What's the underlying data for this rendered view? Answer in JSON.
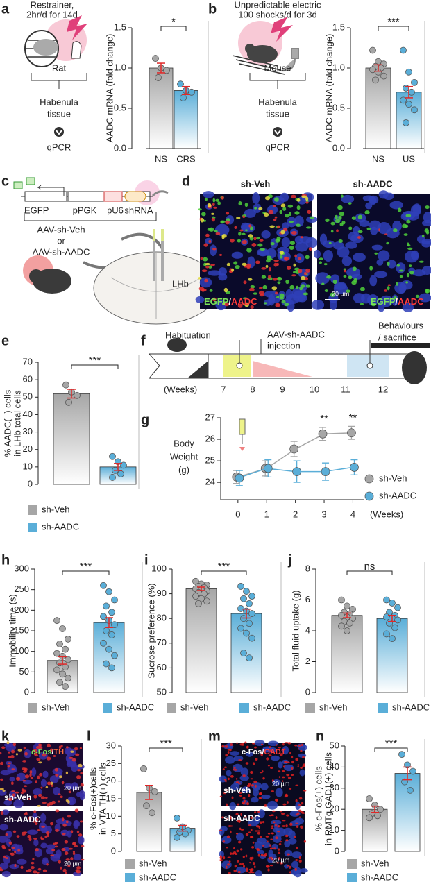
{
  "letters": [
    "a",
    "b",
    "c",
    "d",
    "e",
    "f",
    "g",
    "h",
    "i",
    "j",
    "k",
    "l",
    "m",
    "n"
  ],
  "diagram_a": {
    "lines": [
      "Restrainer,",
      "2hr/d for 14d"
    ],
    "animal": "Rat",
    "tissue": [
      "Habenula",
      "tissue"
    ],
    "assay": "qPCR"
  },
  "diagram_b": {
    "lines": [
      "Unpredictable electric",
      "100 shocks/d for 3d"
    ],
    "animal": "Mouse",
    "tissue": [
      "Habenula",
      "tissue"
    ],
    "assay": "qPCR"
  },
  "diagram_c": {
    "elements": [
      "EGFP",
      "pPGK",
      "pU6",
      "shRNA"
    ],
    "vectors": [
      "AAV-sh-Veh",
      "or",
      "AAV-sh-AADC"
    ],
    "region": "LHb"
  },
  "images_d": {
    "titles": [
      "sh-Veh",
      "sh-AADC"
    ],
    "stain": [
      "EGFP",
      "/",
      "AADC"
    ],
    "scale": "20 µm"
  },
  "timeline_f": {
    "events": [
      "Habituation",
      "AAV-sh-AADC",
      "injection",
      "Behaviours",
      "/ sacrifice"
    ],
    "unit": "(Weeks)",
    "weeks": [
      7,
      8,
      9,
      10,
      11,
      12
    ]
  },
  "images_k": {
    "stain": [
      "c-Fos",
      "/",
      "TH"
    ],
    "groups": [
      "sh-Veh",
      "sh-AADC"
    ],
    "scale": "20 µm"
  },
  "images_m": {
    "stain": [
      "c-Fos",
      "/",
      "GAD1"
    ],
    "groups": [
      "sh-Veh",
      "sh-AADC"
    ],
    "scale": "20 µm"
  },
  "chart_data": [
    {
      "type": "bar",
      "ylabel": [
        "AADC mRNA (fold change)"
      ],
      "categories": [
        "NS",
        "CRS"
      ],
      "values": [
        1.0,
        0.72
      ],
      "errors": [
        0.06,
        0.05
      ],
      "points": [
        [
          1.12,
          1.0,
          0.97,
          0.88
        ],
        [
          0.8,
          0.72,
          0.7,
          0.63
        ]
      ],
      "colors": [
        "#a6a6a6",
        "#5aaed8"
      ],
      "ylim": [
        0,
        1.5
      ],
      "yticks": [
        {
          "value": 0,
          "label": "0.0"
        },
        0.5,
        {
          "value": 1,
          "label": "1.0"
        },
        1.5
      ],
      "significance": "*"
    },
    {
      "type": "bar",
      "ylabel": [
        "AADC mRNA (fold change)"
      ],
      "categories": [
        "NS",
        "US"
      ],
      "values": [
        1.0,
        0.7
      ],
      "errors": [
        0.04,
        0.07
      ],
      "points": [
        [
          1.22,
          1.08,
          1.05,
          1.02,
          1.0,
          0.98,
          0.95,
          0.9,
          0.85
        ],
        [
          1.22,
          0.95,
          0.82,
          0.75,
          0.7,
          0.6,
          0.55,
          0.48,
          0.32
        ]
      ],
      "colors": [
        "#a6a6a6",
        "#5aaed8"
      ],
      "ylim": [
        0,
        1.5
      ],
      "yticks": [
        {
          "value": 0,
          "label": "0.0"
        },
        0.5,
        {
          "value": 1,
          "label": "1.0"
        },
        1.5
      ],
      "significance": "***"
    },
    {
      "type": "bar",
      "ylabel": [
        "% AADC(+) cells",
        "in LHb total cells"
      ],
      "categories": [
        "sh-Veh",
        "sh-AADC"
      ],
      "values": [
        52,
        10
      ],
      "errors": [
        2.5,
        2
      ],
      "points": [
        [
          57,
          53,
          51,
          47
        ],
        [
          16,
          13,
          11,
          8,
          6,
          4
        ]
      ],
      "colors": [
        "#a6a6a6",
        "#5aaed8"
      ],
      "ylim": [
        0,
        70
      ],
      "yticks": [
        0,
        10,
        20,
        30,
        40,
        50,
        60,
        70
      ],
      "significance": "***",
      "legend": "bottom"
    },
    {
      "type": "line",
      "ylabel": [
        "Body",
        "Weight",
        "(g)"
      ],
      "x": [
        0,
        1,
        2,
        3,
        4
      ],
      "xlabel": "(Weeks)",
      "xlim": [
        -0.6,
        4.4
      ],
      "xticks": [
        0,
        1,
        2,
        3,
        4
      ],
      "ylim": [
        23.2,
        27
      ],
      "yticks": [
        24,
        25,
        26,
        27
      ],
      "series": [
        {
          "name": "sh-Veh",
          "color": "#a6a6a6",
          "values": [
            24.25,
            24.65,
            25.55,
            26.25,
            26.3
          ],
          "errors": [
            0.3,
            0.35,
            0.35,
            0.3,
            0.3
          ]
        },
        {
          "name": "sh-AADC",
          "color": "#5aaed8",
          "values": [
            24.2,
            24.65,
            24.5,
            24.5,
            24.7
          ],
          "errors": [
            0.35,
            0.4,
            0.5,
            0.4,
            0.35
          ]
        }
      ],
      "annotations": [
        {
          "x": 3,
          "text": "**"
        },
        {
          "x": 4,
          "text": "**"
        }
      ],
      "legend": "right"
    },
    {
      "type": "bar",
      "ylabel": [
        "Immobility time (s)"
      ],
      "categories": [
        "sh-Veh",
        "sh-AADC"
      ],
      "values": [
        78,
        170
      ],
      "errors": [
        9,
        12
      ],
      "points": [
        [
          175,
          155,
          130,
          118,
          105,
          95,
          88,
          80,
          72,
          62,
          55,
          45,
          35,
          25,
          15
        ],
        [
          260,
          245,
          225,
          210,
          195,
          185,
          175,
          165,
          150,
          140,
          120,
          105,
          90,
          70,
          60
        ]
      ],
      "colors": [
        "#a6a6a6",
        "#5aaed8"
      ],
      "ylim": [
        0,
        300
      ],
      "yticks": [
        0,
        50,
        100,
        150,
        200,
        250,
        300
      ],
      "significance": "***",
      "legend": "bottom"
    },
    {
      "type": "bar",
      "ylabel": [
        "Sucrose preference (%)"
      ],
      "categories": [
        "sh-Veh",
        "sh-AADC"
      ],
      "values": [
        92,
        82
      ],
      "errors": [
        0.7,
        1.8
      ],
      "points": [
        [
          95,
          94,
          93.5,
          93,
          92.5,
          92,
          91.5,
          91,
          90.5,
          90,
          89,
          88,
          87,
          86
        ],
        [
          93,
          91,
          89,
          88,
          86,
          84,
          83,
          82,
          80,
          78,
          76,
          74,
          72,
          66,
          64
        ]
      ],
      "colors": [
        "#a6a6a6",
        "#5aaed8"
      ],
      "ylim": [
        50,
        100
      ],
      "yticks": [
        50,
        60,
        70,
        80,
        90,
        100
      ],
      "significance": "***",
      "legend": "bottom"
    },
    {
      "type": "bar",
      "ylabel": [
        "Total fluid uptake (g)"
      ],
      "categories": [
        "sh-Veh",
        "sh-AADC"
      ],
      "values": [
        5.0,
        4.8
      ],
      "errors": [
        0.15,
        0.2
      ],
      "points": [
        [
          6.0,
          5.6,
          5.4,
          5.2,
          5.1,
          5.0,
          4.9,
          4.8,
          4.6,
          4.5,
          4.3,
          4.0
        ],
        [
          6.0,
          5.8,
          5.5,
          5.2,
          5.0,
          4.9,
          4.8,
          4.7,
          4.5,
          4.2,
          3.8,
          3.5
        ]
      ],
      "colors": [
        "#a6a6a6",
        "#5aaed8"
      ],
      "ylim": [
        0,
        8
      ],
      "yticks": [
        0,
        2,
        4,
        6,
        8
      ],
      "significance": "ns",
      "legend": "bottom"
    },
    {
      "type": "bar",
      "ylabel": [
        "% c-Fos(+)cells",
        "in VTA TH(+) cells"
      ],
      "categories": [
        "sh-Veh",
        "sh-AADC"
      ],
      "values": [
        16.8,
        6.6
      ],
      "errors": [
        2,
        0.8
      ],
      "points": [
        [
          23.5,
          18,
          17,
          13,
          11
        ],
        [
          9.5,
          7,
          6,
          5.5,
          5,
          4
        ]
      ],
      "colors": [
        "#a6a6a6",
        "#5aaed8"
      ],
      "ylim": [
        0,
        30
      ],
      "yticks": [
        0,
        5,
        10,
        15,
        20,
        25,
        30
      ],
      "significance": "***",
      "legend": "bottom"
    },
    {
      "type": "bar",
      "ylabel": [
        "% c-Fos(+) cells",
        "in RMTg GAD1(+) cells"
      ],
      "categories": [
        "sh-Veh",
        "sh-AADC"
      ],
      "values": [
        20,
        37
      ],
      "errors": [
        1.5,
        3
      ],
      "points": [
        [
          25,
          22,
          20,
          18,
          17,
          16
        ],
        [
          46,
          41,
          38,
          33,
          29
        ]
      ],
      "colors": [
        "#a6a6a6",
        "#5aaed8"
      ],
      "ylim": [
        0,
        50
      ],
      "yticks": [
        0,
        10,
        20,
        30,
        40,
        50
      ],
      "significance": "***",
      "legend": "bottom"
    }
  ]
}
